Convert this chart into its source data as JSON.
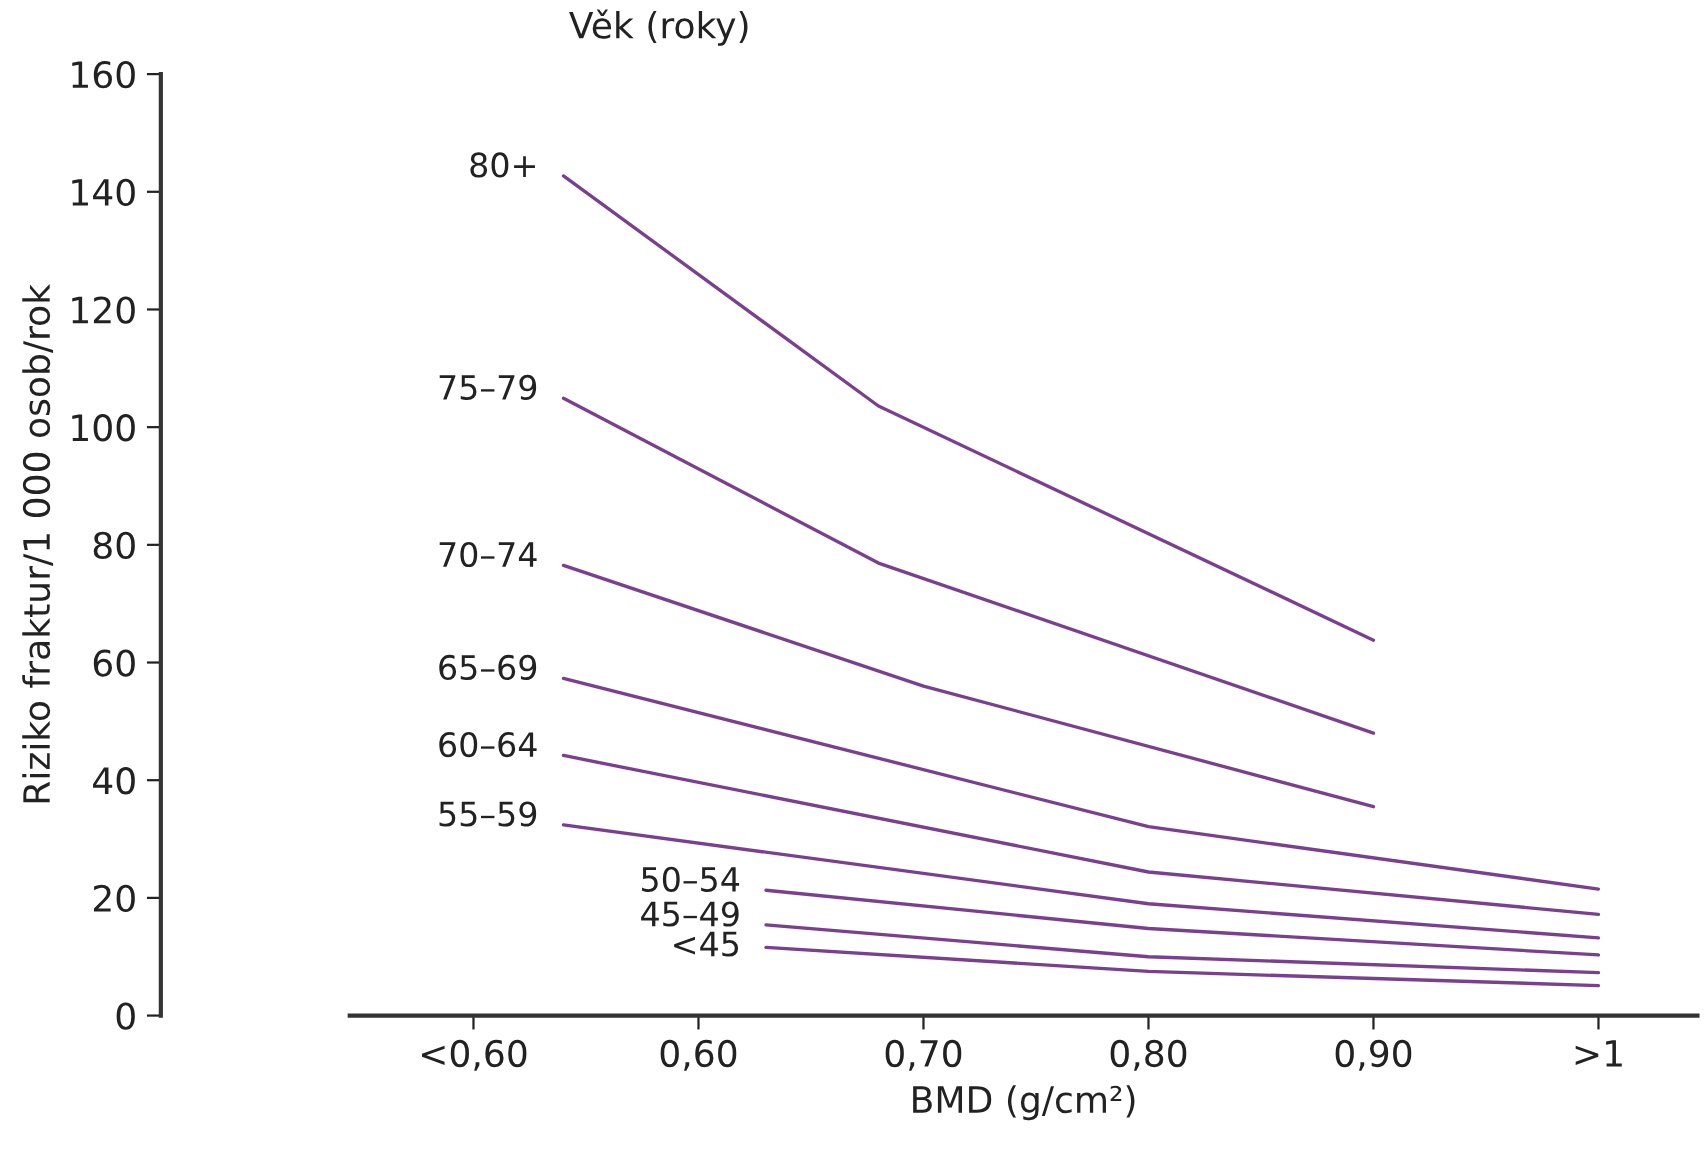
{
  "chart_data": {
    "type": "line",
    "xlabel": "BMD (g/cm²)",
    "ylabel": "Riziko fraktur/1 000 osob/rok",
    "legend_title": "Věk (roky)",
    "xlim": [
      0.445,
      1.044
    ],
    "ylim": [
      0,
      160
    ],
    "xticks": [
      {
        "value": 0.5,
        "label": "<0,60"
      },
      {
        "value": 0.6,
        "label": "0,60"
      },
      {
        "value": 0.7,
        "label": "0,70"
      },
      {
        "value": 0.8,
        "label": "0,80"
      },
      {
        "value": 0.9,
        "label": "0,90"
      },
      {
        "value": 1.0,
        "label": ">1"
      }
    ],
    "yticks": [
      0,
      20,
      40,
      60,
      80,
      100,
      120,
      140,
      160
    ],
    "grid": false,
    "legend": false,
    "marker": "none",
    "line_style": "solid",
    "series": [
      {
        "name": "80+",
        "color": "#7b3f8f",
        "x": [
          0.54,
          0.68,
          0.9
        ],
        "values": [
          142.7,
          103.6,
          63.8
        ]
      },
      {
        "name": "75–79",
        "color": "#7b3f8f",
        "x": [
          0.54,
          0.68,
          0.9
        ],
        "values": [
          104.9,
          76.9,
          48.0
        ]
      },
      {
        "name": "70–74",
        "color": "#7b3f8f",
        "x": [
          0.54,
          0.7,
          0.9
        ],
        "values": [
          76.5,
          56,
          35.5
        ]
      },
      {
        "name": "65–69",
        "color": "#7b3f8f",
        "x": [
          0.54,
          0.8,
          1.0
        ],
        "values": [
          57.3,
          32.1,
          21.5
        ]
      },
      {
        "name": "60–64",
        "color": "#7b3f8f",
        "x": [
          0.54,
          0.8,
          1.0
        ],
        "values": [
          44.2,
          24.4,
          17.2
        ]
      },
      {
        "name": "55–59",
        "color": "#7b3f8f",
        "x": [
          0.54,
          0.8,
          1.0
        ],
        "values": [
          32.4,
          19.0,
          13.2
        ]
      },
      {
        "name": "50–54",
        "color": "#7b3f8f",
        "x": [
          0.63,
          0.8,
          1.0
        ],
        "values": [
          21.3,
          14.8,
          10.3
        ]
      },
      {
        "name": "45–49",
        "color": "#7b3f8f",
        "x": [
          0.63,
          0.8,
          1.0
        ],
        "values": [
          15.4,
          10.0,
          7.3
        ]
      },
      {
        "name": "<45",
        "color": "#7b3f8f",
        "x": [
          0.63,
          0.8,
          1.0
        ],
        "values": [
          11.6,
          7.5,
          5.1
        ]
      }
    ]
  }
}
